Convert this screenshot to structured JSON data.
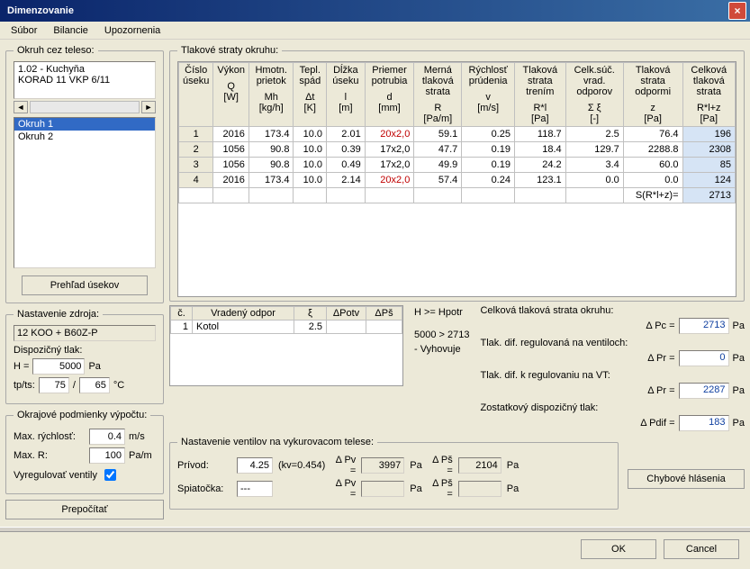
{
  "window": {
    "title": "Dimenzovanie"
  },
  "menu": {
    "subor": "Súbor",
    "bilancie": "Bilancie",
    "upozornenia": "Upozornenia"
  },
  "left": {
    "okruh_legend": "Okruh cez teleso:",
    "radiator_line1": "1.02 - Kuchyňa",
    "radiator_line2": "KORAD 11 VKP 6/11",
    "circuits": [
      "Okruh 1",
      "Okruh 2"
    ],
    "selected_circuit": 0,
    "prehlad_btn": "Prehľad úsekov",
    "nastavenie_legend": "Nastavenie zdroja:",
    "zdroj": "12 KOO + B60Z-P",
    "disp_tlak_label": "Dispozičný tlak:",
    "H_label": "H =",
    "H_val": "5000",
    "H_unit": "Pa",
    "tpts_label": "tp/ts:",
    "tp_val": "75",
    "ts_val": "65",
    "deg_unit": "°C",
    "okraj_legend": "Okrajové podmienky výpočtu:",
    "maxv_label": "Max. rýchlosť:",
    "maxv_val": "0.4",
    "maxv_unit": "m/s",
    "maxr_label": "Max. R:",
    "maxr_val": "100",
    "maxr_unit": "Pa/m",
    "vyreg_label": "Vyregulovať ventily",
    "prepocitat_btn": "Prepočítať"
  },
  "grid": {
    "legend": "Tlakové straty okruhu:",
    "headers": [
      {
        "main": "Číslo úseku",
        "sym": "",
        "unit": ""
      },
      {
        "main": "Výkon",
        "sym": "Q",
        "unit": "[W]"
      },
      {
        "main": "Hmotn. prietok",
        "sym": "Mh",
        "unit": "[kg/h]"
      },
      {
        "main": "Tepl. spád",
        "sym": "Δt",
        "unit": "[K]"
      },
      {
        "main": "Dĺžka úseku",
        "sym": "l",
        "unit": "[m]"
      },
      {
        "main": "Priemer potrubia",
        "sym": "d",
        "unit": "[mm]"
      },
      {
        "main": "Merná tlaková strata",
        "sym": "R",
        "unit": "[Pa/m]"
      },
      {
        "main": "Rýchlosť prúdenia",
        "sym": "v",
        "unit": "[m/s]"
      },
      {
        "main": "Tlaková strata trením",
        "sym": "R*l",
        "unit": "[Pa]"
      },
      {
        "main": "Celk.súč. vrad. odporov",
        "sym": "Σ ξ",
        "unit": "[-]"
      },
      {
        "main": "Tlaková strata odpormi",
        "sym": "z",
        "unit": "[Pa]"
      },
      {
        "main": "Celková tlaková strata",
        "sym": "R*l+z",
        "unit": "[Pa]"
      }
    ],
    "rows": [
      {
        "n": "1",
        "Q": "2016",
        "Mh": "173.4",
        "dt": "10.0",
        "l": "2.01",
        "d": "20x2,0",
        "d_red": true,
        "R": "59.1",
        "v": "0.25",
        "Rl": "118.7",
        "xi": "2.5",
        "z": "76.4",
        "tot": "196",
        "hl": true
      },
      {
        "n": "2",
        "Q": "1056",
        "Mh": "90.8",
        "dt": "10.0",
        "l": "0.39",
        "d": "17x2,0",
        "d_red": false,
        "R": "47.7",
        "v": "0.19",
        "Rl": "18.4",
        "xi": "129.7",
        "z": "2288.8",
        "tot": "2308",
        "hl": true
      },
      {
        "n": "3",
        "Q": "1056",
        "Mh": "90.8",
        "dt": "10.0",
        "l": "0.49",
        "d": "17x2,0",
        "d_red": false,
        "R": "49.9",
        "v": "0.19",
        "Rl": "24.2",
        "xi": "3.4",
        "z": "60.0",
        "tot": "85",
        "hl": true
      },
      {
        "n": "4",
        "Q": "2016",
        "Mh": "173.4",
        "dt": "10.0",
        "l": "2.14",
        "d": "20x2,0",
        "d_red": true,
        "R": "57.4",
        "v": "0.24",
        "Rl": "123.1",
        "xi": "0.0",
        "z": "0.0",
        "tot": "124",
        "hl": true
      }
    ],
    "sum_label": "S(R*l+z)=",
    "sum_val": "2713"
  },
  "vr": {
    "headers": {
      "c": "č.",
      "name": "Vradený odpor",
      "xi": "ξ",
      "dPotv": "ΔPotv",
      "dPs": "ΔPš"
    },
    "rows": [
      {
        "c": "1",
        "name": "Kotol",
        "xi": "2.5",
        "dPotv": "",
        "dPs": ""
      }
    ]
  },
  "info": {
    "h_line": "H  >=  Hpotr",
    "cmp_line": "5000 > 2713",
    "ok_line": "- Vyhovuje"
  },
  "pressure": {
    "title": "Celková tlaková strata okruhu:",
    "pc_label": "Δ Pc =",
    "pc_val": "2713",
    "pa": "Pa",
    "reg_vent": "Tlak. dif. regulovaná na ventiloch:",
    "pr1_label": "Δ Pr =",
    "pr1_val": "0",
    "reg_vt": "Tlak. dif. k regulovaniu na VT:",
    "pr2_label": "Δ Pr =",
    "pr2_val": "2287",
    "zost": "Zostatkový dispozičný tlak:",
    "pdif_label": "Δ Pdif =",
    "pdif_val": "183"
  },
  "valves": {
    "legend": "Nastavenie ventilov na vykurovacom telese:",
    "privod_label": "Prívod:",
    "privod_val": "4.25",
    "privod_kv": " (kv=0.454)",
    "dpv1_label": "Δ Pv =",
    "dpv1_val": "3997",
    "dps1_label": "Δ Pš =",
    "dps1_val": "2104",
    "spiat_label": "Spiatočka:",
    "spiat_val": "---",
    "dpv2_label": "Δ Pv =",
    "dpv2_val": "",
    "dps2_label": "Δ Pš =",
    "dps2_val": "",
    "pa": "Pa",
    "err_btn": "Chybové hlásenia"
  },
  "buttons": {
    "ok": "OK",
    "cancel": "Cancel"
  }
}
